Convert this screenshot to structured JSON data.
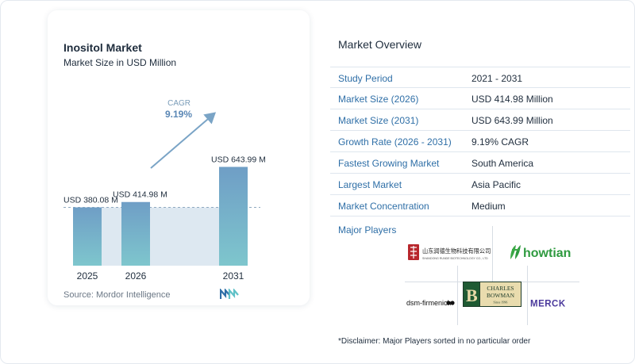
{
  "chart_data": {
    "type": "bar",
    "title": "Inositol Market",
    "subtitle": "Market Size in USD Million",
    "categories": [
      "2025",
      "2026",
      "2031"
    ],
    "values": [
      380.08,
      414.98,
      643.99
    ],
    "value_labels": [
      "USD 380.08 M",
      "USD 414.98 M",
      "USD 643.99 M"
    ],
    "cagr_label": "CAGR",
    "cagr_value": "9.19%",
    "ylim": [
      0,
      700
    ],
    "grid": false,
    "source_label": "Source:",
    "source_name": "Mordor Intelligence",
    "colors": {
      "bar_top": "#6f9ec6",
      "bar_bottom": "#7ec6cd",
      "shade": "#dde8f1",
      "arrow": "#7aa4c6",
      "cagr_label": "#7a9cb8",
      "cagr_value": "#5a87b5"
    }
  },
  "overview": {
    "title": "Market Overview",
    "rows": [
      {
        "label": "Study Period",
        "value": "2021 - 2031"
      },
      {
        "label": "Market Size (2026)",
        "value": "USD 414.98 Million"
      },
      {
        "label": "Market Size (2031)",
        "value": "USD 643.99 Million"
      },
      {
        "label": "Growth Rate (2026 - 2031)",
        "value": "9.19% CAGR"
      },
      {
        "label": "Fastest Growing Market",
        "value": "South America"
      },
      {
        "label": "Largest Market",
        "value": "Asia Pacific"
      },
      {
        "label": "Market Concentration",
        "value": "Medium"
      }
    ],
    "label_color": "#2f6fa7"
  },
  "players": {
    "title": "Major Players",
    "logos": [
      {
        "name": "shandong-runde",
        "text": "山东润德生物科技有限公司",
        "subtext": "SHANDONG RUNDE BIOTECHNOLOGY CO., LTD",
        "icon": "seal-icon"
      },
      {
        "name": "howtian",
        "text": "howtian",
        "icon": "leaf-icon"
      },
      {
        "name": "charles-bowman",
        "text1": "CHARLES",
        "text2": "BOWMAN",
        "text3": "Since 1996"
      },
      {
        "name": "dsm-firmenich",
        "text": "dsm-firmenich"
      },
      {
        "name": "merck",
        "text": "MERCK"
      }
    ]
  },
  "disclaimer": "*Disclaimer: Major Players sorted in no particular order"
}
